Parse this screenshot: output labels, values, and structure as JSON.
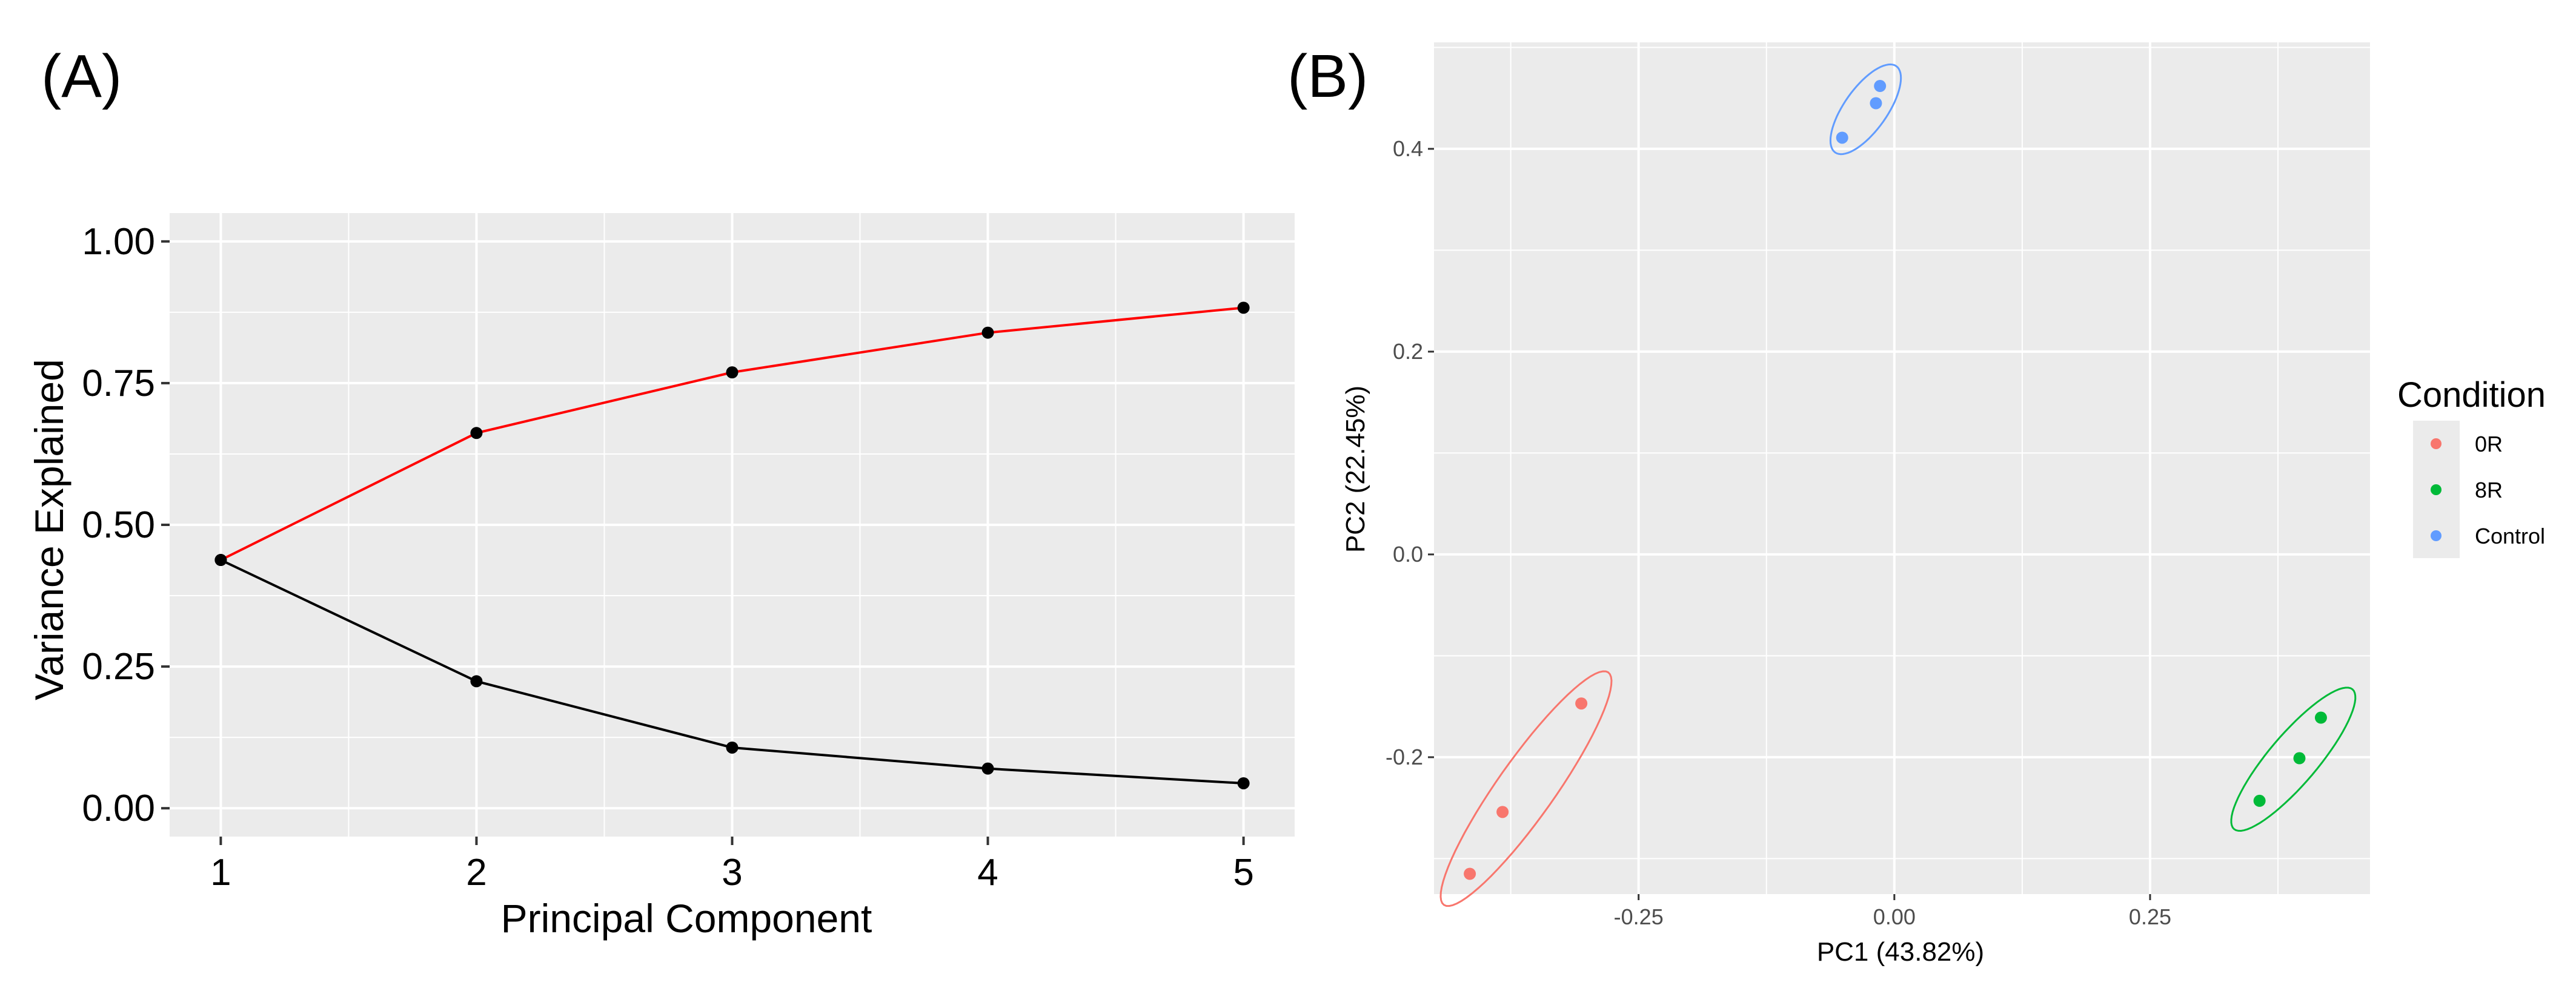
{
  "panels": {
    "a_label": "(A)",
    "b_label": "(B)"
  },
  "chart_data": [
    {
      "type": "line",
      "xlabel": "Principal Component",
      "ylabel": "Variance Explained",
      "x": [
        1,
        2,
        3,
        4,
        5
      ],
      "xticks": [
        "1",
        "2",
        "3",
        "4",
        "5"
      ],
      "xlim": [
        0.8,
        5.2
      ],
      "ylim": [
        -0.05,
        1.05
      ],
      "yticks": [
        "0.00",
        "0.25",
        "0.50",
        "0.75",
        "1.00"
      ],
      "ytick_values": [
        0,
        0.25,
        0.5,
        0.75,
        1.0
      ],
      "grid": true,
      "background": "#ebebeb",
      "series": [
        {
          "values": [
            0.438,
            0.662,
            0.769,
            0.839,
            0.883
          ],
          "color": "#ff0000",
          "marker_color": "#000000"
        },
        {
          "values": [
            0.438,
            0.224,
            0.107,
            0.07,
            0.044
          ],
          "color": "#000000",
          "marker_color": "#000000"
        }
      ]
    },
    {
      "type": "scatter",
      "xlabel": "PC1 (43.82%)",
      "ylabel": "PC2 (22.45%)",
      "xlim": [
        -0.45,
        0.465
      ],
      "ylim": [
        -0.335,
        0.505
      ],
      "xticks": [
        "-0.25",
        "0.00",
        "0.25"
      ],
      "xtick_values": [
        -0.25,
        0,
        0.25
      ],
      "yticks": [
        "-0.2",
        "0.0",
        "0.2",
        "0.4"
      ],
      "ytick_values": [
        -0.2,
        0,
        0.2,
        0.4
      ],
      "grid": true,
      "background": "#ebebeb",
      "legend": {
        "title": "Condition",
        "placement": "right"
      },
      "series": [
        {
          "name": "0R",
          "color": "#f8766d",
          "points": [
            [
              -0.306,
              -0.147
            ],
            [
              -0.383,
              -0.254
            ],
            [
              -0.415,
              -0.315
            ]
          ],
          "ellipse": {
            "center": [
              -0.36,
              -0.231
            ],
            "semi_axis_1": 0.14,
            "semi_axis_2": 0.028,
            "angle_deg": 55
          }
        },
        {
          "name": "8R",
          "color": "#00ba38",
          "points": [
            [
              0.417,
              -0.161
            ],
            [
              0.396,
              -0.201
            ],
            [
              0.357,
              -0.243
            ]
          ],
          "ellipse": {
            "center": [
              0.39,
              -0.202
            ],
            "semi_axis_1": 0.09,
            "semi_axis_2": 0.024,
            "angle_deg": 50
          }
        },
        {
          "name": "Control",
          "color": "#619cff",
          "points": [
            [
              -0.014,
              0.462
            ],
            [
              -0.018,
              0.445
            ],
            [
              -0.051,
              0.411
            ]
          ],
          "ellipse": {
            "center": [
              -0.028,
              0.439
            ],
            "semi_axis_1": 0.052,
            "semi_axis_2": 0.021,
            "angle_deg": 55
          }
        }
      ]
    }
  ]
}
